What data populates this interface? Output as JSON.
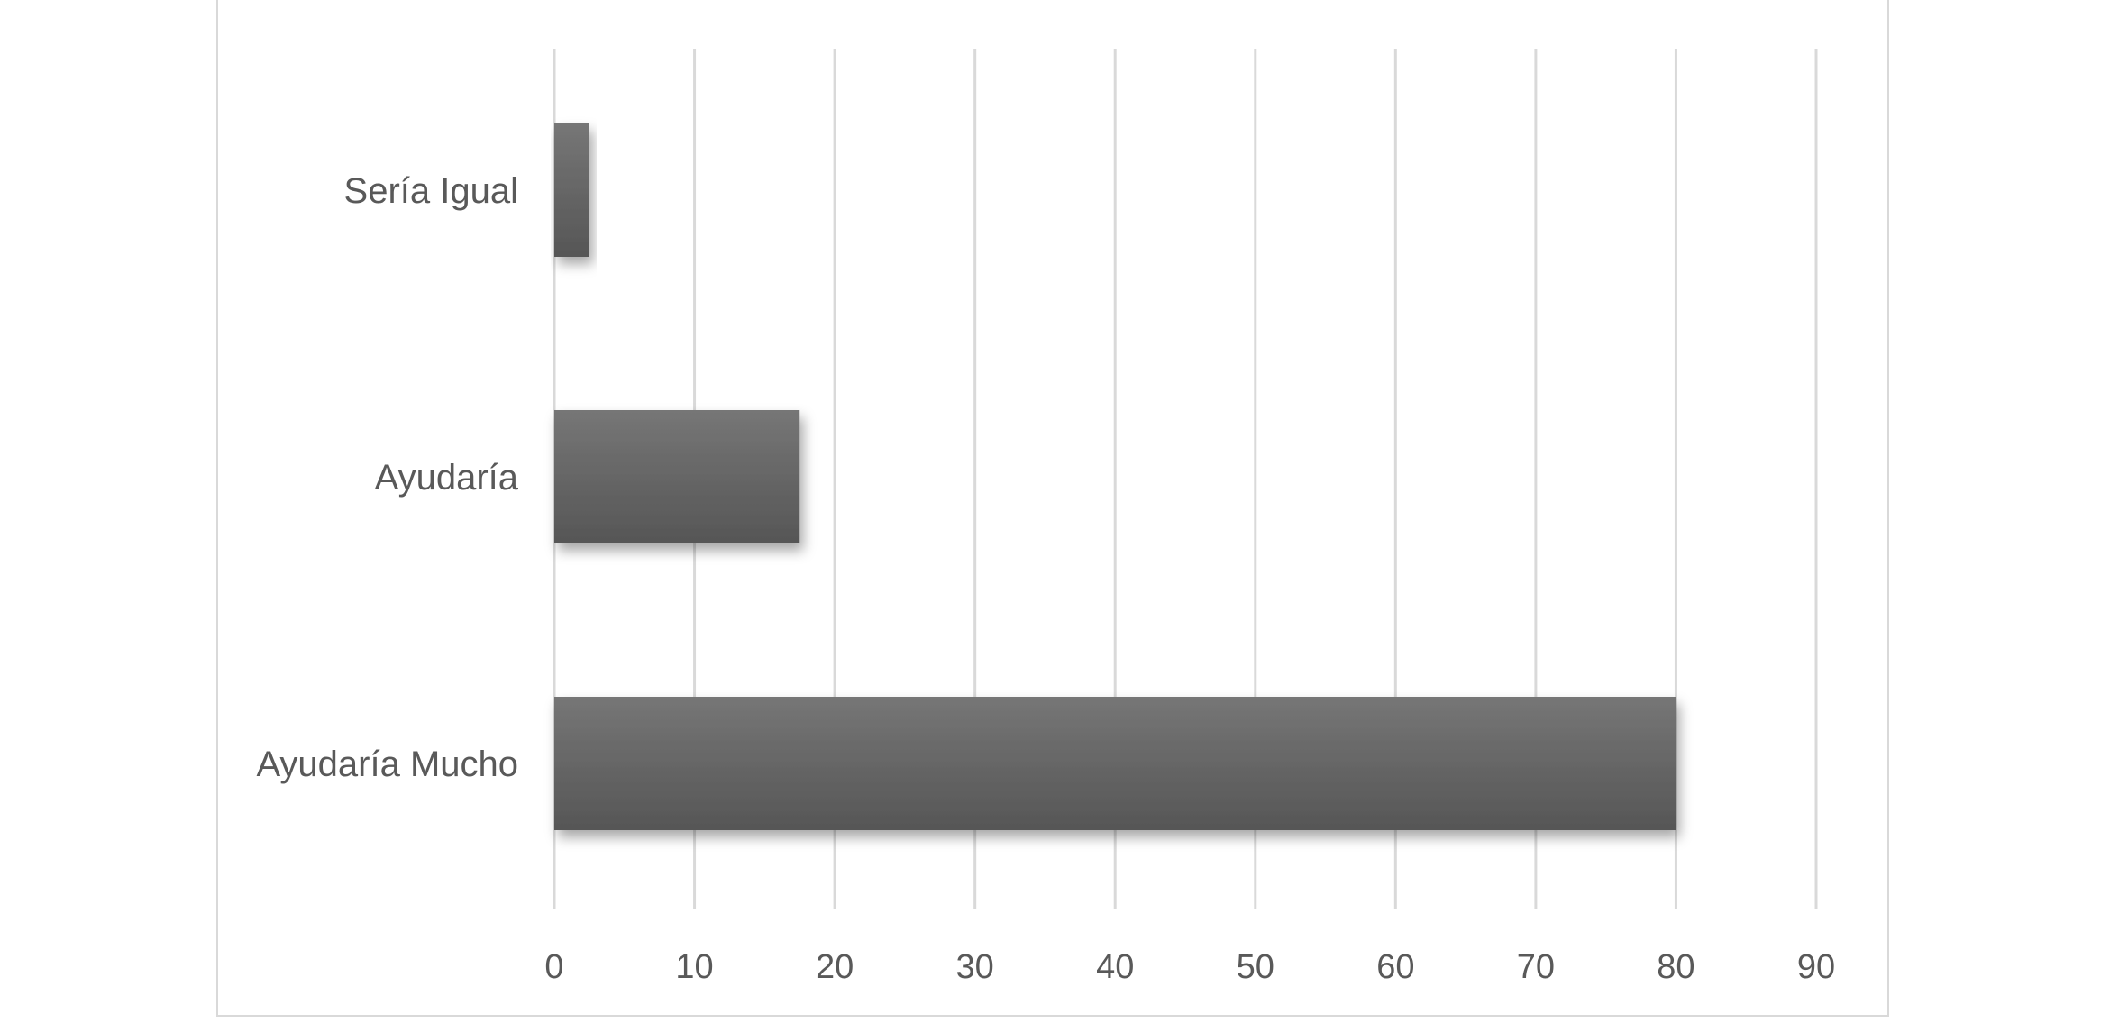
{
  "chart_data": {
    "type": "bar",
    "orientation": "horizontal",
    "categories": [
      "Sería Igual",
      "Ayudaría",
      "Ayudaría Mucho"
    ],
    "values": [
      2.5,
      17.5,
      80
    ],
    "title": "",
    "xlabel": "",
    "ylabel": "",
    "xlim": [
      0,
      90
    ],
    "xticks": [
      0,
      10,
      20,
      30,
      40,
      50,
      60,
      70,
      80,
      90
    ],
    "grid": "vertical",
    "legend": "none",
    "bar_color": "#5f5f5f",
    "grid_color": "#d9d9d9"
  }
}
